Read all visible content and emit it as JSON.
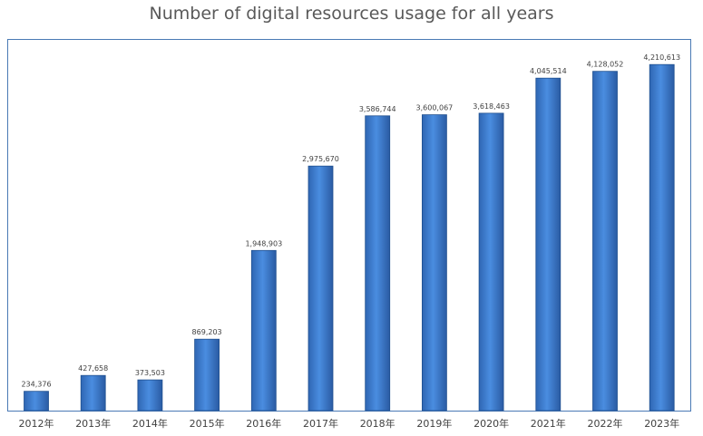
{
  "chart_data": {
    "type": "bar",
    "title": "Number of digital resources usage for all years",
    "xlabel": "",
    "ylabel": "",
    "categories": [
      "2012年",
      "2013年",
      "2014年",
      "2015年",
      "2016年",
      "2017年",
      "2018年",
      "2019年",
      "2020年",
      "2021年",
      "2022年",
      "2023年"
    ],
    "values": [
      234376,
      427658,
      373503,
      869203,
      1948903,
      2975670,
      3586744,
      3600067,
      3618463,
      4045514,
      4128052,
      4210613
    ],
    "value_labels": [
      "234,376",
      "427,658",
      "373,503",
      "869,203",
      "1,948,903",
      "2,975,670",
      "3,586,744",
      "3,600,067",
      "3,618,463",
      "4,045,514",
      "4,128,052",
      "4,210,613"
    ],
    "ylim": [
      0,
      4500000
    ],
    "grid": false,
    "legend": "none",
    "colors": {
      "bar_top": "#5a9ae8",
      "bar_bottom": "#2a5fa8",
      "bar_border": "#1f4f8f",
      "frame": "#4a7ab5"
    }
  }
}
